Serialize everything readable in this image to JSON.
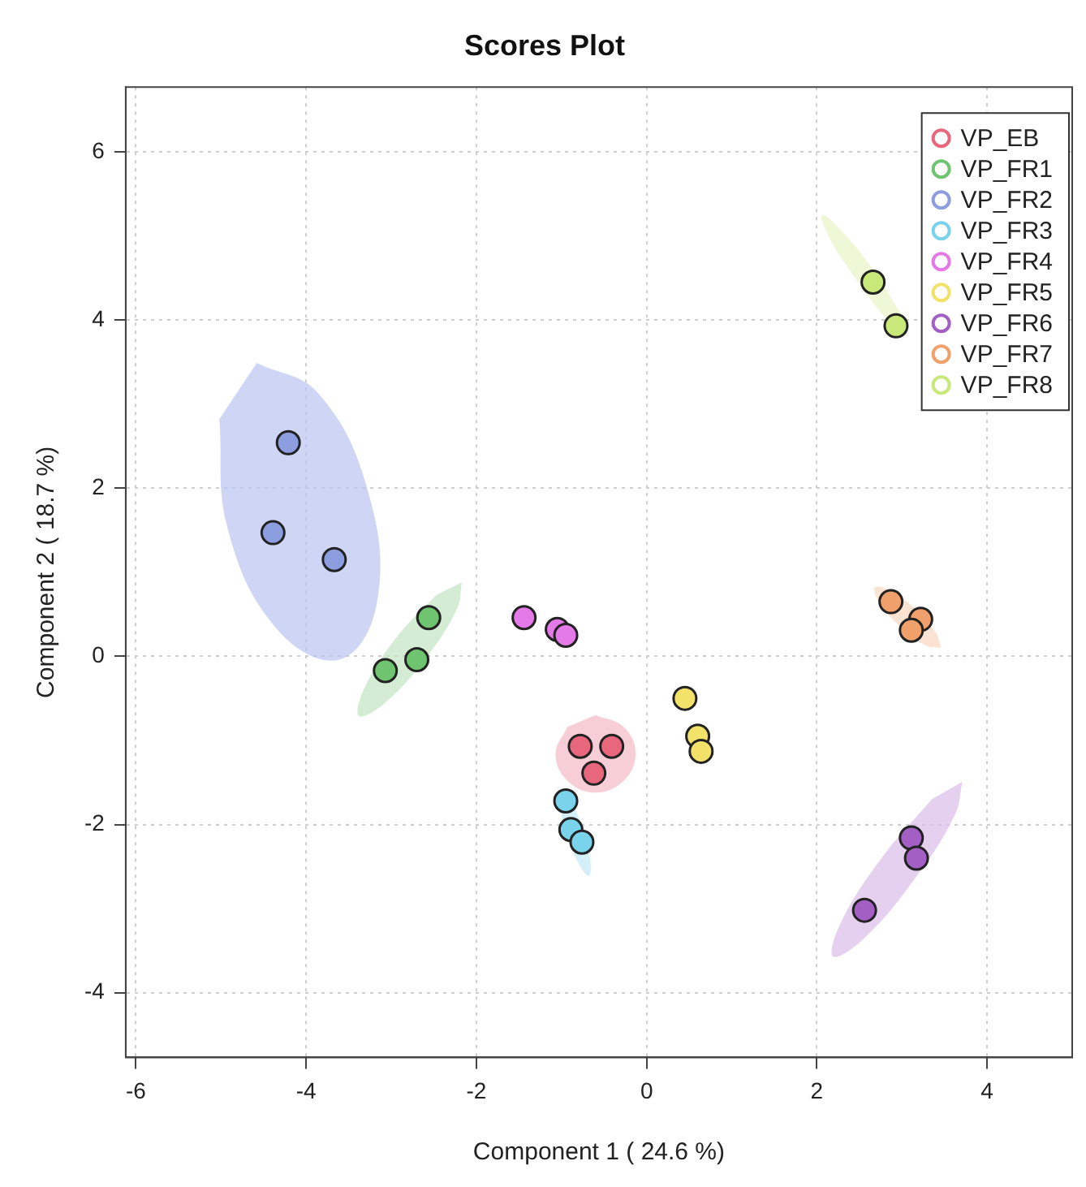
{
  "chart_data": {
    "type": "scatter",
    "title": "Scores Plot",
    "xlabel": "Component 1 ( 24.6 %)",
    "ylabel": "Component 2 ( 18.7 %)",
    "xlim": [
      -6.12,
      5.0
    ],
    "xticks": [
      -6,
      -4,
      -2,
      0,
      2,
      4
    ],
    "ylim": [
      -4.77,
      6.77
    ],
    "yticks": [
      -4,
      -2,
      0,
      2,
      4,
      6
    ],
    "grid": true,
    "legend": "top right",
    "marker": "circle",
    "series": [
      {
        "name": "VP_EB",
        "color": "#e8677d",
        "x": [
          -0.78,
          -0.41,
          -0.62
        ],
        "values": [
          -1.07,
          -1.07,
          -1.39
        ]
      },
      {
        "name": "VP_FR1",
        "color": "#6fc46f",
        "x": [
          -2.56,
          -2.7,
          -3.07
        ],
        "values": [
          0.46,
          -0.04,
          -0.17
        ]
      },
      {
        "name": "VP_FR2",
        "color": "#8c9de0",
        "x": [
          -4.21,
          -4.39,
          -3.67
        ],
        "values": [
          2.54,
          1.47,
          1.15
        ]
      },
      {
        "name": "VP_FR3",
        "color": "#79d3ea",
        "x": [
          -0.95,
          -0.89,
          -0.76
        ],
        "values": [
          -1.72,
          -2.06,
          -2.21
        ]
      },
      {
        "name": "VP_FR4",
        "color": "#e47ae8",
        "x": [
          -1.44,
          -1.05,
          -0.95
        ],
        "values": [
          0.46,
          0.32,
          0.25
        ]
      },
      {
        "name": "VP_FR5",
        "color": "#f2e26a",
        "x": [
          0.45,
          0.6,
          0.64
        ],
        "values": [
          -0.5,
          -0.95,
          -1.13
        ]
      },
      {
        "name": "VP_FR6",
        "color": "#a35fc4",
        "x": [
          3.11,
          3.17,
          2.56
        ],
        "values": [
          -2.16,
          -2.4,
          -3.02
        ]
      },
      {
        "name": "VP_FR7",
        "color": "#f0a06a",
        "x": [
          2.87,
          3.22,
          3.11
        ],
        "values": [
          0.65,
          0.44,
          0.31
        ]
      },
      {
        "name": "VP_FR8",
        "color": "#c8e87a",
        "x": [
          2.66,
          2.93
        ],
        "values": [
          4.45,
          3.93
        ]
      },
      {
        "type": "area",
        "marker": "none",
        "color": "#b9c3f0",
        "x": [
          -4.58,
          -3.86,
          -3.27,
          -3.17,
          -3.61,
          -4.34,
          -4.92,
          -5.02
        ],
        "values": [
          3.49,
          3.13,
          1.95,
          0.63,
          -0.04,
          0.32,
          1.51,
          2.82
        ]
      },
      {
        "type": "area",
        "marker": "none",
        "color": "#bfe3bf",
        "x": [
          -2.17,
          -2.23,
          -2.61,
          -3.08,
          -3.38,
          -3.32,
          -2.95,
          -2.47
        ],
        "values": [
          0.88,
          0.56,
          -0.04,
          -0.56,
          -0.71,
          -0.39,
          0.21,
          0.73
        ]
      },
      {
        "type": "area",
        "marker": "none",
        "color": "#f3b8c2",
        "x": [
          -0.6,
          -0.27,
          -0.13,
          -0.27,
          -0.6,
          -0.93,
          -1.07,
          -0.93
        ],
        "values": [
          -0.7,
          -0.84,
          -1.16,
          -1.48,
          -1.62,
          -1.48,
          -1.16,
          -0.84
        ]
      },
      {
        "type": "area",
        "marker": "none",
        "color": "#bfe8f3",
        "x": [
          -1.01,
          -0.9,
          -0.75,
          -0.66,
          -0.68,
          -0.79,
          -0.94,
          -1.03
        ],
        "values": [
          -1.56,
          -1.7,
          -2.06,
          -2.44,
          -2.61,
          -2.48,
          -2.12,
          -1.74
        ]
      },
      {
        "type": "area",
        "marker": "none",
        "color": "#f8d6bf",
        "x": [
          3.46,
          3.28,
          2.97,
          2.73,
          2.68,
          2.86,
          3.16,
          3.41
        ],
        "values": [
          0.1,
          0.13,
          0.36,
          0.65,
          0.82,
          0.78,
          0.56,
          0.27
        ]
      },
      {
        "type": "area",
        "marker": "none",
        "color": "#d9bde8",
        "x": [
          3.71,
          3.62,
          3.14,
          2.55,
          2.19,
          2.28,
          2.76,
          3.35
        ],
        "values": [
          -1.49,
          -1.89,
          -2.66,
          -3.36,
          -3.57,
          -3.17,
          -2.4,
          -1.7
        ]
      },
      {
        "type": "area",
        "marker": "none",
        "color": "#e6f3c4",
        "x": [
          3.07,
          2.85,
          2.47,
          2.14,
          2.06,
          2.27,
          2.66,
          2.99
        ],
        "values": [
          3.82,
          3.98,
          4.47,
          4.99,
          5.25,
          5.08,
          4.6,
          4.07
        ]
      }
    ]
  }
}
